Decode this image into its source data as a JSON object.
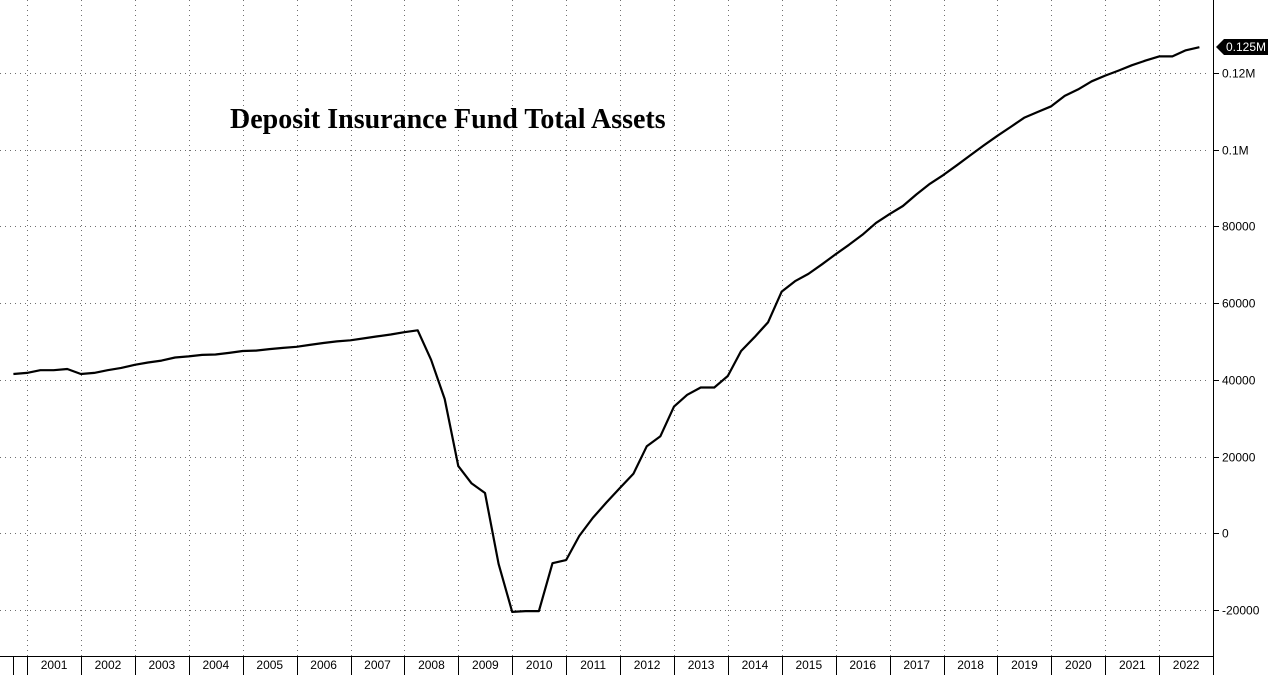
{
  "chart_data": {
    "type": "line",
    "title": "Deposit Insurance Fund Total Assets",
    "xlabel": "",
    "ylabel": "",
    "x_tick_labels": [
      "2001",
      "2002",
      "2003",
      "2004",
      "2005",
      "2006",
      "2007",
      "2008",
      "2009",
      "2010",
      "2011",
      "2012",
      "2013",
      "2014",
      "2015",
      "2016",
      "2017",
      "2018",
      "2019",
      "2020",
      "2021",
      "2022"
    ],
    "y_ticks": [
      {
        "value": -20000,
        "label": "-20000"
      },
      {
        "value": 0,
        "label": "0"
      },
      {
        "value": 20000,
        "label": "20000"
      },
      {
        "value": 40000,
        "label": "40000"
      },
      {
        "value": 60000,
        "label": "60000"
      },
      {
        "value": 80000,
        "label": "80000"
      },
      {
        "value": 100000,
        "label": "0.1M"
      },
      {
        "value": 120000,
        "label": "0.12M"
      }
    ],
    "last_value_label": "0.125M",
    "xlim": [
      "2000-07-01",
      "2022-12-31"
    ],
    "ylim": [
      -32000,
      139000
    ],
    "grid": true,
    "y_axis_position": "right",
    "series": [
      {
        "points": [
          [
            "2000-09-30",
            41500
          ],
          [
            "2000-12-31",
            41800
          ],
          [
            "2001-03-31",
            42500
          ],
          [
            "2001-06-30",
            42500
          ],
          [
            "2001-09-30",
            42800
          ],
          [
            "2001-12-31",
            41500
          ],
          [
            "2002-03-31",
            41800
          ],
          [
            "2002-06-30",
            42500
          ],
          [
            "2002-09-30",
            43100
          ],
          [
            "2002-12-31",
            43900
          ],
          [
            "2003-03-31",
            44500
          ],
          [
            "2003-06-30",
            45000
          ],
          [
            "2003-09-30",
            45800
          ],
          [
            "2003-12-31",
            46100
          ],
          [
            "2004-03-31",
            46500
          ],
          [
            "2004-06-30",
            46600
          ],
          [
            "2004-09-30",
            47000
          ],
          [
            "2004-12-31",
            47500
          ],
          [
            "2005-03-31",
            47600
          ],
          [
            "2005-06-30",
            48000
          ],
          [
            "2005-09-30",
            48300
          ],
          [
            "2005-12-31",
            48600
          ],
          [
            "2006-03-31",
            49100
          ],
          [
            "2006-06-30",
            49600
          ],
          [
            "2006-09-30",
            50000
          ],
          [
            "2006-12-31",
            50300
          ],
          [
            "2007-03-31",
            50800
          ],
          [
            "2007-06-30",
            51300
          ],
          [
            "2007-09-30",
            51800
          ],
          [
            "2007-12-31",
            52400
          ],
          [
            "2008-03-31",
            52900
          ],
          [
            "2008-06-30",
            45200
          ],
          [
            "2008-09-30",
            35000
          ],
          [
            "2008-12-31",
            17500
          ],
          [
            "2009-03-31",
            13000
          ],
          [
            "2009-06-30",
            10500
          ],
          [
            "2009-09-30",
            -8000
          ],
          [
            "2009-12-31",
            -20500
          ],
          [
            "2010-03-31",
            -20300
          ],
          [
            "2010-06-30",
            -20300
          ],
          [
            "2010-09-30",
            -7800
          ],
          [
            "2010-12-31",
            -7000
          ],
          [
            "2011-03-31",
            -700
          ],
          [
            "2011-06-30",
            4000
          ],
          [
            "2011-09-30",
            8000
          ],
          [
            "2011-12-31",
            11800
          ],
          [
            "2012-03-31",
            15500
          ],
          [
            "2012-06-30",
            22700
          ],
          [
            "2012-09-30",
            25300
          ],
          [
            "2012-12-31",
            33000
          ],
          [
            "2013-03-31",
            36100
          ],
          [
            "2013-06-30",
            38000
          ],
          [
            "2013-09-30",
            38000
          ],
          [
            "2013-12-31",
            41000
          ],
          [
            "2014-03-31",
            47500
          ],
          [
            "2014-06-30",
            51100
          ],
          [
            "2014-09-30",
            55000
          ],
          [
            "2014-12-31",
            63000
          ],
          [
            "2015-03-31",
            65700
          ],
          [
            "2015-06-30",
            67600
          ],
          [
            "2015-09-30",
            70100
          ],
          [
            "2015-12-31",
            72700
          ],
          [
            "2016-03-31",
            75200
          ],
          [
            "2016-06-30",
            77800
          ],
          [
            "2016-09-30",
            80900
          ],
          [
            "2016-12-31",
            83200
          ],
          [
            "2017-03-31",
            85300
          ],
          [
            "2017-06-30",
            88300
          ],
          [
            "2017-09-30",
            91100
          ],
          [
            "2017-12-31",
            93400
          ],
          [
            "2018-03-31",
            95900
          ],
          [
            "2018-06-30",
            98500
          ],
          [
            "2018-09-30",
            101100
          ],
          [
            "2018-12-31",
            103600
          ],
          [
            "2019-03-31",
            105900
          ],
          [
            "2019-06-30",
            108300
          ],
          [
            "2019-09-30",
            109800
          ],
          [
            "2019-12-31",
            111300
          ],
          [
            "2020-03-31",
            114000
          ],
          [
            "2020-06-30",
            115700
          ],
          [
            "2020-09-30",
            117800
          ],
          [
            "2020-12-31",
            119300
          ],
          [
            "2021-03-31",
            120600
          ],
          [
            "2021-06-30",
            122000
          ],
          [
            "2021-09-30",
            123200
          ],
          [
            "2021-12-31",
            124300
          ],
          [
            "2022-03-31",
            124300
          ],
          [
            "2022-06-30",
            125900
          ],
          [
            "2022-09-30",
            126700
          ]
        ]
      }
    ]
  }
}
